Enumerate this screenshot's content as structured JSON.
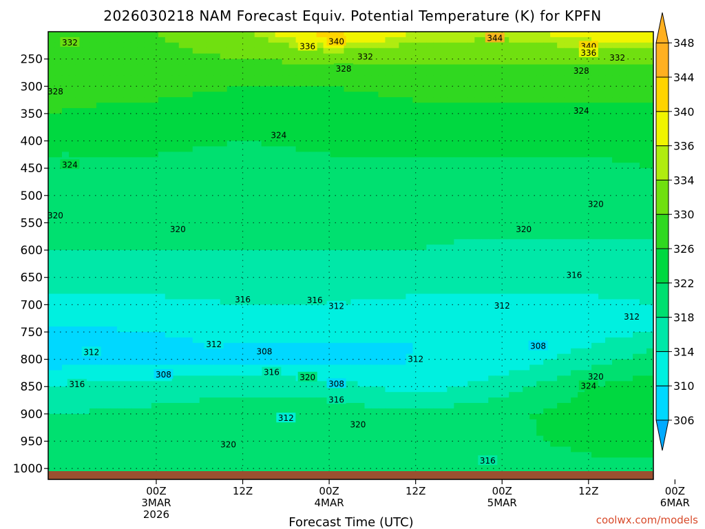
{
  "chart_data": {
    "type": "heatmap",
    "title": "2026030218 NAM Forecast Equiv. Potential Temperature (K) for KPFN",
    "xlabel": "Forecast Time (UTC)",
    "ylabel": "",
    "grid": true,
    "x_ticks": [
      {
        "lines": [
          "00Z",
          "3MAR",
          "2026"
        ]
      },
      {
        "lines": [
          "12Z"
        ]
      },
      {
        "lines": [
          "00Z",
          "4MAR"
        ]
      },
      {
        "lines": [
          "12Z"
        ]
      },
      {
        "lines": [
          "00Z",
          "5MAR"
        ]
      },
      {
        "lines": [
          "12Z"
        ]
      },
      {
        "lines": [
          "00Z",
          "6MAR"
        ]
      }
    ],
    "x_range_hours": [
      -15,
      69
    ],
    "pressure_levels": [
      250,
      300,
      350,
      400,
      450,
      500,
      550,
      600,
      650,
      700,
      750,
      800,
      850,
      900,
      950,
      1000
    ],
    "y_range": [
      200,
      1020
    ],
    "y_axis": "pressure (hPa), reversed",
    "colorbar": {
      "levels": [
        306,
        310,
        314,
        318,
        322,
        326,
        330,
        334,
        336,
        340,
        344,
        348
      ],
      "colors": [
        "#00aaff",
        "#00d8ff",
        "#00f0e0",
        "#00e8a8",
        "#00e070",
        "#00d840",
        "#30d820",
        "#70e010",
        "#b0ec10",
        "#f0f400",
        "#ffd400",
        "#ffb020"
      ],
      "extend": "both"
    },
    "theta_e_profiles": {
      "pressure": [
        200,
        250,
        300,
        350,
        400,
        450,
        500,
        550,
        600,
        650,
        700,
        750,
        800,
        850,
        900,
        950,
        1000
      ],
      "times_hours": [
        -15,
        0,
        12,
        24,
        36,
        48,
        60,
        69
      ],
      "values": [
        [
          330,
          330,
          333,
          342,
          336,
          335,
          338,
          340
        ],
        [
          330,
          329,
          330,
          331,
          331,
          331,
          331,
          331
        ],
        [
          327,
          327,
          326,
          326,
          327,
          327,
          327,
          327
        ],
        [
          326,
          325,
          324,
          324,
          325,
          325,
          325,
          325
        ],
        [
          323,
          323,
          322,
          323,
          323,
          323,
          323,
          324
        ],
        [
          321,
          321,
          320,
          321,
          321,
          321,
          321,
          322
        ],
        [
          320,
          320,
          319,
          320,
          320,
          320,
          320,
          320
        ],
        [
          319,
          319,
          319,
          319,
          319,
          319,
          319,
          319
        ],
        [
          318,
          318,
          318,
          318,
          318,
          317,
          317,
          317
        ],
        [
          316,
          316,
          317,
          316,
          316,
          316,
          316,
          316
        ],
        [
          313,
          313,
          314,
          314,
          313,
          313,
          313,
          314
        ],
        [
          309,
          310,
          311,
          311,
          310,
          311,
          312,
          314
        ],
        [
          308,
          309,
          309,
          308,
          310,
          311,
          316,
          320
        ],
        [
          314,
          316,
          317,
          316,
          312,
          316,
          322,
          324
        ],
        [
          318,
          319,
          320,
          320,
          319,
          321,
          324,
          325
        ],
        [
          320,
          320,
          321,
          321,
          320,
          321,
          323,
          324
        ],
        [
          320,
          320,
          321,
          321,
          320,
          320,
          321,
          321
        ]
      ]
    },
    "contour_labels": [
      {
        "text": "332",
        "t": -12,
        "p": 220
      },
      {
        "text": "340",
        "t": 25,
        "p": 218
      },
      {
        "text": "344",
        "t": 47,
        "p": 212
      },
      {
        "text": "336",
        "t": 21,
        "p": 227
      },
      {
        "text": "340",
        "t": 60,
        "p": 227
      },
      {
        "text": "336",
        "t": 60,
        "p": 239
      },
      {
        "text": "332",
        "t": 29,
        "p": 246
      },
      {
        "text": "332",
        "t": 64,
        "p": 248
      },
      {
        "text": "328",
        "t": 26,
        "p": 268
      },
      {
        "text": "328",
        "t": 59,
        "p": 272
      },
      {
        "text": "328",
        "t": -14,
        "p": 310
      },
      {
        "text": "324",
        "t": 59,
        "p": 345
      },
      {
        "text": "324",
        "t": 17,
        "p": 390
      },
      {
        "text": "324",
        "t": -12,
        "p": 444
      },
      {
        "text": "320",
        "t": -14,
        "p": 537
      },
      {
        "text": "320",
        "t": 3,
        "p": 562
      },
      {
        "text": "320",
        "t": 61,
        "p": 516
      },
      {
        "text": "320",
        "t": 51,
        "p": 562
      },
      {
        "text": "316",
        "t": 58,
        "p": 646
      },
      {
        "text": "316",
        "t": 12,
        "p": 691
      },
      {
        "text": "316",
        "t": 22,
        "p": 692
      },
      {
        "text": "312",
        "t": 25,
        "p": 703
      },
      {
        "text": "312",
        "t": 48,
        "p": 702
      },
      {
        "text": "312",
        "t": 66,
        "p": 722
      },
      {
        "text": "312",
        "t": -9,
        "p": 787
      },
      {
        "text": "312",
        "t": 8,
        "p": 773
      },
      {
        "text": "308",
        "t": 15,
        "p": 786
      },
      {
        "text": "308",
        "t": 53,
        "p": 776
      },
      {
        "text": "308",
        "t": 1,
        "p": 828
      },
      {
        "text": "312",
        "t": 36,
        "p": 800
      },
      {
        "text": "316",
        "t": -11,
        "p": 846
      },
      {
        "text": "316",
        "t": 16,
        "p": 824
      },
      {
        "text": "320",
        "t": 21,
        "p": 833
      },
      {
        "text": "308",
        "t": 25,
        "p": 845
      },
      {
        "text": "316",
        "t": 25,
        "p": 874
      },
      {
        "text": "312",
        "t": 18,
        "p": 908
      },
      {
        "text": "320",
        "t": 28,
        "p": 920
      },
      {
        "text": "320",
        "t": 61,
        "p": 832
      },
      {
        "text": "324",
        "t": 60,
        "p": 849
      },
      {
        "text": "320",
        "t": 10,
        "p": 956
      },
      {
        "text": "316",
        "t": 46,
        "p": 986
      }
    ]
  },
  "credit": "coolwx.com/models"
}
